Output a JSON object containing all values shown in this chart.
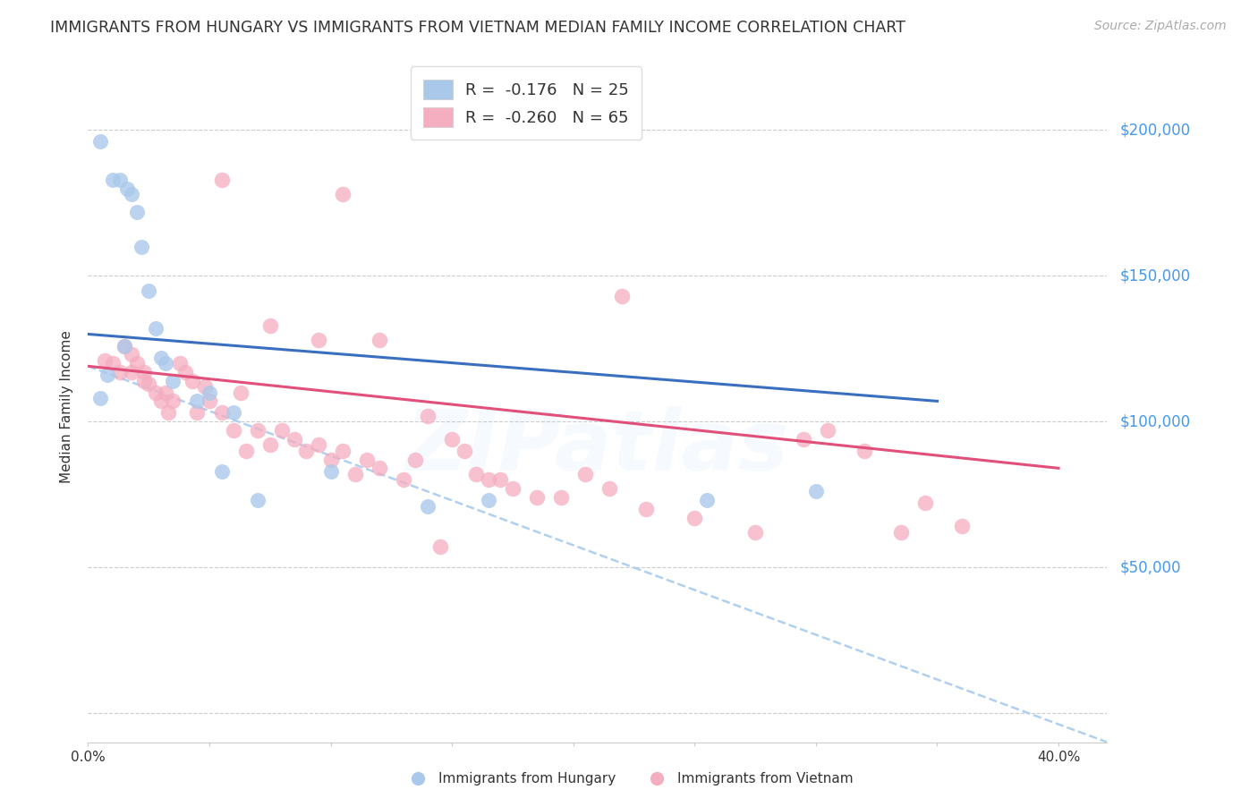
{
  "title": "IMMIGRANTS FROM HUNGARY VS IMMIGRANTS FROM VIETNAM MEDIAN FAMILY INCOME CORRELATION CHART",
  "source": "Source: ZipAtlas.com",
  "ylabel": "Median Family Income",
  "yticks": [
    0,
    50000,
    100000,
    150000,
    200000
  ],
  "ytick_labels": [
    "",
    "$50,000",
    "$100,000",
    "$150,000",
    "$200,000"
  ],
  "xticks": [
    0.0,
    0.05,
    0.1,
    0.15,
    0.2,
    0.25,
    0.3,
    0.35,
    0.4
  ],
  "xlim": [
    0.0,
    0.42
  ],
  "ylim": [
    -10000,
    220000
  ],
  "background_color": "#ffffff",
  "hungary_color": "#aac8ea",
  "vietnam_color": "#f5adc0",
  "hungary_line_color": "#3a6fbf",
  "vietnam_line_color": "#e0507a",
  "dashed_line_color": "#b0d0f0",
  "legend_hungary_R": "-0.176",
  "legend_hungary_N": "25",
  "legend_vietnam_R": "-0.260",
  "legend_vietnam_N": "65",
  "hungary_scatter_x": [
    0.005,
    0.01,
    0.013,
    0.016,
    0.018,
    0.02,
    0.022,
    0.025,
    0.028,
    0.03,
    0.015,
    0.032,
    0.008,
    0.035,
    0.005,
    0.05,
    0.045,
    0.06,
    0.055,
    0.1,
    0.07,
    0.14,
    0.165,
    0.255,
    0.3
  ],
  "hungary_scatter_y": [
    196000,
    183000,
    183000,
    180000,
    178000,
    172000,
    160000,
    145000,
    132000,
    122000,
    126000,
    120000,
    116000,
    114000,
    108000,
    110000,
    107000,
    103000,
    83000,
    83000,
    73000,
    71000,
    73000,
    73000,
    76000
  ],
  "vietnam_scatter_x": [
    0.007,
    0.01,
    0.013,
    0.015,
    0.018,
    0.02,
    0.023,
    0.025,
    0.028,
    0.03,
    0.033,
    0.035,
    0.038,
    0.04,
    0.043,
    0.045,
    0.048,
    0.05,
    0.055,
    0.06,
    0.063,
    0.065,
    0.07,
    0.075,
    0.08,
    0.085,
    0.09,
    0.095,
    0.1,
    0.105,
    0.11,
    0.115,
    0.12,
    0.13,
    0.135,
    0.14,
    0.15,
    0.155,
    0.16,
    0.165,
    0.17,
    0.175,
    0.185,
    0.195,
    0.205,
    0.215,
    0.23,
    0.25,
    0.275,
    0.295,
    0.305,
    0.32,
    0.335,
    0.345,
    0.36,
    0.105,
    0.22,
    0.055,
    0.075,
    0.095,
    0.12,
    0.145,
    0.018,
    0.023,
    0.032
  ],
  "vietnam_scatter_y": [
    121000,
    120000,
    117000,
    126000,
    123000,
    120000,
    117000,
    113000,
    110000,
    107000,
    103000,
    107000,
    120000,
    117000,
    114000,
    103000,
    112000,
    107000,
    103000,
    97000,
    110000,
    90000,
    97000,
    92000,
    97000,
    94000,
    90000,
    92000,
    87000,
    90000,
    82000,
    87000,
    84000,
    80000,
    87000,
    102000,
    94000,
    90000,
    82000,
    80000,
    80000,
    77000,
    74000,
    74000,
    82000,
    77000,
    70000,
    67000,
    62000,
    94000,
    97000,
    90000,
    62000,
    72000,
    64000,
    178000,
    143000,
    183000,
    133000,
    128000,
    128000,
    57000,
    117000,
    114000,
    110000
  ],
  "hungary_trend_x": [
    0.0,
    0.35
  ],
  "hungary_trend_y": [
    130000,
    107000
  ],
  "vietnam_trend_x": [
    0.0,
    0.4
  ],
  "vietnam_trend_y": [
    119000,
    84000
  ],
  "dashed_trend_x": [
    0.0,
    0.42
  ],
  "dashed_trend_y": [
    119000,
    -10000
  ],
  "grid_color": "#cccccc",
  "ytick_color": "#4499ee",
  "title_fontsize": 12.5,
  "source_fontsize": 10,
  "legend_fontsize": 13,
  "ylabel_fontsize": 11,
  "ytick_fontsize": 12,
  "watermark_alpha": 0.12
}
